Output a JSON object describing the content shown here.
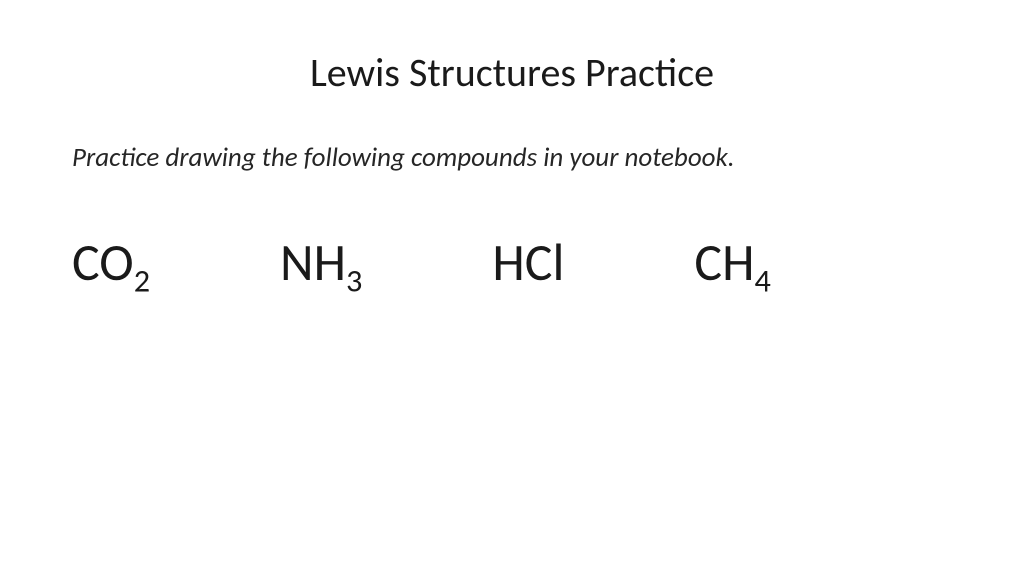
{
  "title": "Lewis Structures Practice",
  "instruction": "Practice drawing the following compounds in your notebook.",
  "compounds": [
    {
      "base": "CO",
      "sub": "2"
    },
    {
      "base": "NH",
      "sub": "3"
    },
    {
      "base": "HCl",
      "sub": ""
    },
    {
      "base": "CH",
      "sub": "4"
    }
  ],
  "style": {
    "background_color": "#ffffff",
    "text_color": "#1a1a1a",
    "title_fontsize": 40,
    "instruction_fontsize": 27,
    "compound_fontsize": 52,
    "font_family": "Calibri"
  }
}
